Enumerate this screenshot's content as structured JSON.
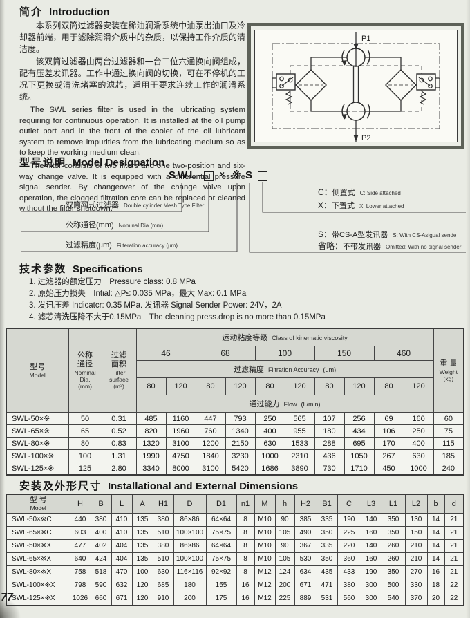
{
  "page": {
    "number": "77"
  },
  "sections": {
    "intro": {
      "zh": "简介",
      "en": "Introduction",
      "paragraphs_zh": [
        "本系列双筒过滤器安装在稀油润滑系统中油泵出油口及冷却器前端，用于滤除润滑介质中的杂质，以保持工作介质的清洁度。",
        "该双筒过滤器由两台过滤器和一台二位六通换向阀组成，配有压差发讯器。工作中通过换向阀的切换，可在不停机的工况下更换或清洗堵塞的滤芯，适用于要求连续工作的润滑系统。"
      ],
      "paragraphs_en": [
        "The SWL series filter is used in the lubricating system requiring for continuous operation. It is installed at the oil pump outlet port and in the front of the cooler of the oil lubricant system to remove impurities from the lubricating medium so as to keep the working medium clean.",
        "The filter consists of two filters and one two-position and six-way change valve. It is equipped with a differential pressure signal sender. By changeover of the change valve upon operation, the clogged filtration core can be replaced or cleaned without the filter shutdown."
      ]
    },
    "designation": {
      "zh": "型号说明",
      "en": "Model Designation",
      "code": {
        "prefix": "SWL-",
        "box1": "□",
        "times": "×",
        "star": "※",
        "s": "S",
        "box2": "□"
      },
      "left_labels": [
        {
          "zh": "双筒网式过滤器",
          "en": "Double cylinder Mesh Type Filter"
        },
        {
          "zh": "公称通径(mm)",
          "en": "Nominal Dia.(mm)"
        },
        {
          "zh": "过滤精度(μm)",
          "en": "Filteration accuracy (μm)"
        }
      ],
      "right_labels": [
        {
          "key": "C：",
          "zh": "侧置式",
          "en": "C: Side attached"
        },
        {
          "key": "X：",
          "zh": "下置式",
          "en": "X: Lower attached"
        },
        {
          "key": "S：",
          "zh": "带CS-A型发讯器",
          "en": "S: With CS-Asigual sende"
        },
        {
          "key": "省略：",
          "zh": "不带发讯器",
          "en": "Omitted: With no signal sender"
        }
      ]
    },
    "specs": {
      "zh": "技术参数",
      "en": "Specifications",
      "items": [
        "1. 过滤器的额定压力　Pressure class: 0.8 MPa",
        "2. 原始压力损失　Intial: △P≤ 0.035 MPa，最大 Max: 0.1 MPa",
        "3. 发讯压差 Indicatcr: 0.35 MPa. 发讯器 Signal Sender Power: 24V，2A",
        "4. 滤芯清洗压降不大于0.15MPa　The cleaning press.drop is no more than 0.15MPa"
      ]
    },
    "install": {
      "zh": "安装及外形尺寸",
      "en": "Installational and External Dimensions"
    }
  },
  "diagram": {
    "p1": "P1",
    "p2": "P2"
  },
  "table1": {
    "header": {
      "model_zh": "型号",
      "model_en": "Model",
      "nominal_zh1": "公称",
      "nominal_zh2": "通径",
      "nominal_en1": "Nominal",
      "nominal_en2": "Dia.",
      "nominal_unit": "(mm)",
      "surface_zh1": "过滤",
      "surface_zh2": "面积",
      "surface_en1": "Filter",
      "surface_en2": "surface",
      "surface_unit": "(m²)",
      "viscosity_zh": "运动粘度等级",
      "viscosity_en": "Class of kinematic viscosity",
      "accuracy_zh": "过滤精度",
      "accuracy_en": "Filtration Accuracy",
      "accuracy_unit": "(μm)",
      "flow_zh": "通过能力",
      "flow_en": "Flow",
      "flow_unit": "(L/min)",
      "weight_zh": "重 量",
      "weight_en": "Weight",
      "weight_unit": "(kg)"
    },
    "viscosity_classes": [
      "46",
      "68",
      "100",
      "150",
      "460"
    ],
    "accuracy_columns": [
      "80",
      "120",
      "80",
      "120",
      "80",
      "120",
      "80",
      "120",
      "80",
      "120"
    ],
    "rows": [
      {
        "model": "SWL-50×※",
        "nominal": "50",
        "surface": "0.31",
        "flows": [
          "485",
          "1160",
          "447",
          "793",
          "250",
          "565",
          "107",
          "256",
          "69",
          "160"
        ],
        "weight": "60"
      },
      {
        "model": "SWL-65×※",
        "nominal": "65",
        "surface": "0.52",
        "flows": [
          "820",
          "1960",
          "760",
          "1340",
          "400",
          "955",
          "180",
          "434",
          "106",
          "250"
        ],
        "weight": "75"
      },
      {
        "model": "SWL-80×※",
        "nominal": "80",
        "surface": "0.83",
        "flows": [
          "1320",
          "3100",
          "1200",
          "2150",
          "630",
          "1533",
          "288",
          "695",
          "170",
          "400"
        ],
        "weight": "115"
      },
      {
        "model": "SWL-100×※",
        "nominal": "100",
        "surface": "1.31",
        "flows": [
          "1990",
          "4750",
          "1840",
          "3230",
          "1000",
          "2310",
          "436",
          "1050",
          "267",
          "630"
        ],
        "weight": "185"
      },
      {
        "model": "SWL-125×※",
        "nominal": "125",
        "surface": "2.80",
        "flows": [
          "3340",
          "8000",
          "3100",
          "5420",
          "1686",
          "3890",
          "730",
          "1710",
          "450",
          "1000"
        ],
        "weight": "240"
      }
    ]
  },
  "table2": {
    "model_zh": "型 号",
    "model_en": "Model",
    "headers": [
      "H",
      "B",
      "L",
      "A",
      "H1",
      "D",
      "D1",
      "n1",
      "M",
      "h",
      "H2",
      "B1",
      "C",
      "L3",
      "L1",
      "L2",
      "b",
      "d"
    ],
    "rows": [
      {
        "model": "SWL-50×※C",
        "values": [
          "440",
          "380",
          "410",
          "135",
          "380",
          "86×86",
          "64×64",
          "8",
          "M10",
          "90",
          "385",
          "335",
          "190",
          "140",
          "350",
          "130",
          "14",
          "21"
        ]
      },
      {
        "model": "SWL-65×※C",
        "values": [
          "603",
          "400",
          "410",
          "135",
          "510",
          "100×100",
          "75×75",
          "8",
          "M10",
          "105",
          "490",
          "350",
          "225",
          "160",
          "350",
          "150",
          "14",
          "21"
        ]
      },
      {
        "model": "SWL-50×※X",
        "values": [
          "477",
          "402",
          "404",
          "135",
          "380",
          "86×86",
          "64×64",
          "8",
          "M10",
          "90",
          "367",
          "335",
          "220",
          "140",
          "260",
          "210",
          "14",
          "21"
        ]
      },
      {
        "model": "SWL-65×※X",
        "values": [
          "640",
          "424",
          "404",
          "135",
          "510",
          "100×100",
          "75×75",
          "8",
          "M10",
          "105",
          "530",
          "350",
          "360",
          "160",
          "260",
          "210",
          "14",
          "21"
        ]
      },
      {
        "model": "SWL-80×※X",
        "values": [
          "758",
          "518",
          "470",
          "100",
          "630",
          "116×116",
          "92×92",
          "8",
          "M12",
          "124",
          "634",
          "435",
          "433",
          "190",
          "350",
          "270",
          "16",
          "21"
        ]
      },
      {
        "model": "SWL-100×※X",
        "values": [
          "798",
          "590",
          "632",
          "120",
          "685",
          "180",
          "155",
          "16",
          "M12",
          "200",
          "671",
          "471",
          "380",
          "300",
          "500",
          "330",
          "18",
          "22"
        ]
      },
      {
        "model": "SWL-125×※X",
        "values": [
          "1026",
          "660",
          "671",
          "120",
          "910",
          "200",
          "175",
          "16",
          "M12",
          "225",
          "889",
          "531",
          "560",
          "300",
          "540",
          "370",
          "20",
          "22"
        ]
      }
    ]
  }
}
